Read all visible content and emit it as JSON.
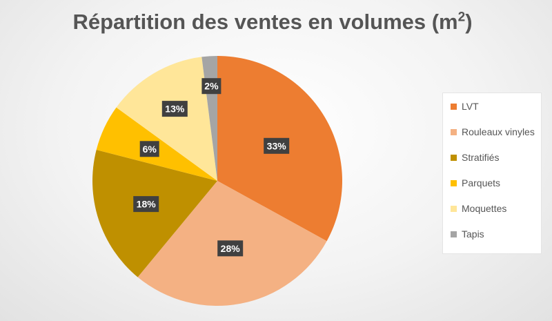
{
  "chart_data": {
    "type": "pie",
    "title_main": "Répartition des ventes en volumes (m",
    "title_sup": "2",
    "title_close": ")",
    "categories": [
      "LVT",
      "Rouleaux vinyles",
      "Stratifiés",
      "Parquets",
      "Moquettes",
      "Tapis"
    ],
    "values": [
      33,
      28,
      18,
      6,
      13,
      2
    ],
    "labels": [
      "33%",
      "28%",
      "18%",
      "6%",
      "13%",
      "2%"
    ],
    "colors": [
      "#ED7D31",
      "#F4B183",
      "#BF9000",
      "#FFC000",
      "#FFE699",
      "#A5A5A5"
    ],
    "legend_position": "right"
  }
}
